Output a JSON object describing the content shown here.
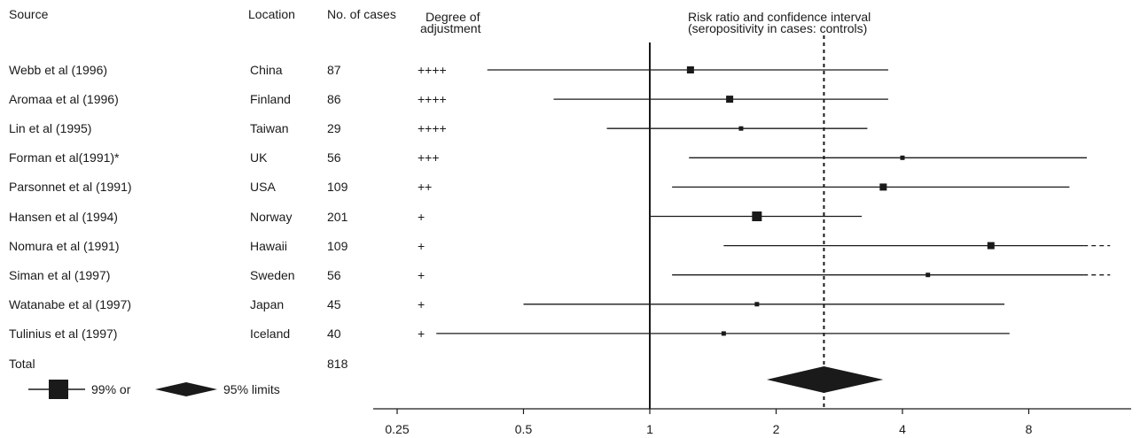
{
  "headers": {
    "source": "Source",
    "location": "Location",
    "cases": "No. of cases",
    "adjustment_line1": "Degree of",
    "adjustment_line2": "adjustment",
    "chart_title_line1": "Risk ratio and confidence interval",
    "chart_title_line2": "(seropositivity in cases: controls)"
  },
  "studies": [
    {
      "source": "Webb et al (1996)",
      "location": "China",
      "cases": "87",
      "adjustment": "++++"
    },
    {
      "source": "Aromaa et al (1996)",
      "location": "Finland",
      "cases": "86",
      "adjustment": "++++"
    },
    {
      "source": "Lin et al (1995)",
      "location": "Taiwan",
      "cases": "29",
      "adjustment": "++++"
    },
    {
      "source": "Forman et al(1991)*",
      "location": "UK",
      "cases": "56",
      "adjustment": "+++"
    },
    {
      "source": "Parsonnet et al (1991)",
      "location": "USA",
      "cases": "109",
      "adjustment": "++"
    },
    {
      "source": "Hansen et al (1994)",
      "location": "Norway",
      "cases": "201",
      "adjustment": "+"
    },
    {
      "source": "Nomura et al (1991)",
      "location": "Hawaii",
      "cases": "109",
      "adjustment": "+"
    },
    {
      "source": "Siman et al (1997)",
      "location": "Sweden",
      "cases": "56",
      "adjustment": "+"
    },
    {
      "source": "Watanabe et al (1997)",
      "location": "Japan",
      "cases": "45",
      "adjustment": "+"
    },
    {
      "source": "Tulinius et al (1997)",
      "location": "Iceland",
      "cases": "40",
      "adjustment": "+"
    }
  ],
  "total": {
    "label": "Total",
    "cases": "818"
  },
  "legend": {
    "ci_label": "99% or",
    "diamond_label": "95% limits"
  },
  "chart_data": {
    "type": "forest",
    "x_scale": "log2",
    "xlim": [
      0.2,
      12.5
    ],
    "x_ticks": [
      "0.25",
      "0.5",
      "1",
      "2",
      "4",
      "8"
    ],
    "reference_line": 1,
    "pooled_dashed_line": 2.6,
    "estimates": [
      {
        "rr": 1.25,
        "low": 0.41,
        "high": 3.7,
        "weight": "medium",
        "arrow": false
      },
      {
        "rr": 1.55,
        "low": 0.59,
        "high": 3.7,
        "weight": "medium",
        "arrow": false
      },
      {
        "rr": 1.65,
        "low": 0.79,
        "high": 3.3,
        "weight": "small",
        "arrow": false
      },
      {
        "rr": 4.0,
        "low": 1.24,
        "high": 11.0,
        "weight": "small",
        "arrow": false
      },
      {
        "rr": 3.6,
        "low": 1.13,
        "high": 10.0,
        "weight": "medium",
        "arrow": false
      },
      {
        "rr": 1.8,
        "low": 1.0,
        "high": 3.2,
        "weight": "large",
        "arrow": false
      },
      {
        "rr": 6.5,
        "low": 1.5,
        "high": 12.5,
        "weight": "medium",
        "arrow": true
      },
      {
        "rr": 4.6,
        "low": 1.13,
        "high": 12.5,
        "weight": "small",
        "arrow": true
      },
      {
        "rr": 1.8,
        "low": 0.5,
        "high": 7.0,
        "weight": "small",
        "arrow": false
      },
      {
        "rr": 1.5,
        "low": 0.31,
        "high": 7.2,
        "weight": "small",
        "arrow": false
      }
    ],
    "pooled": {
      "rr": 2.6,
      "low": 1.9,
      "high": 3.6
    }
  }
}
